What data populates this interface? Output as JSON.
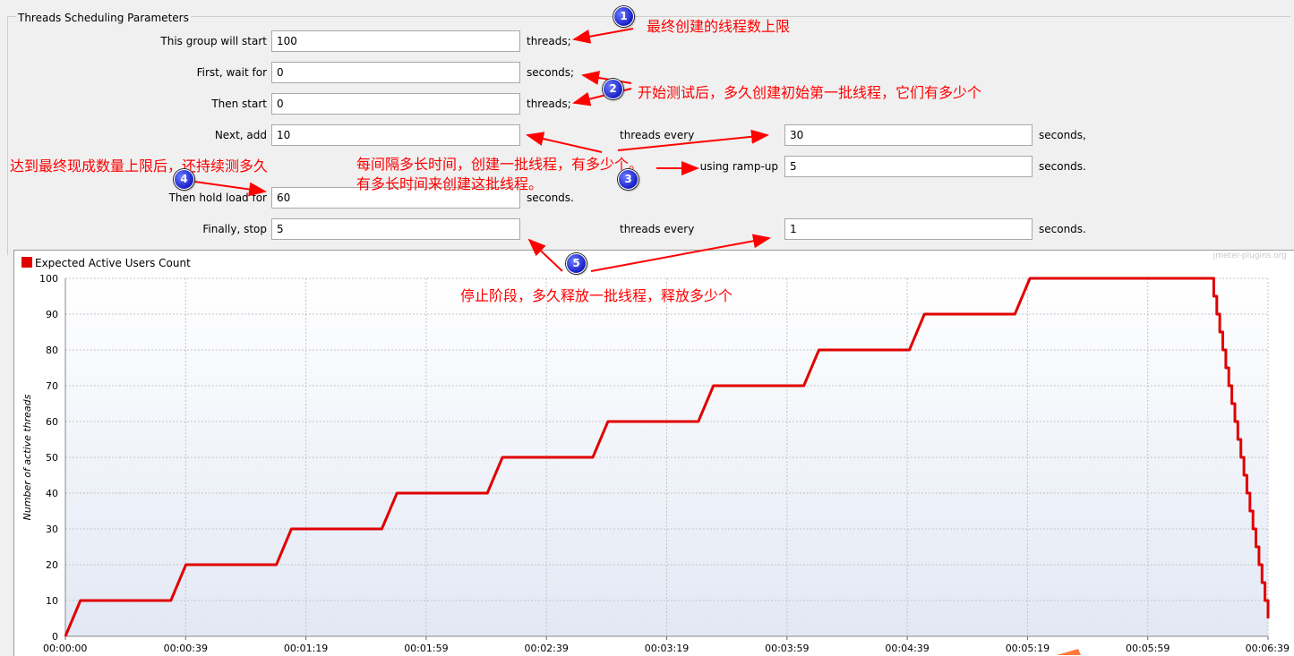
{
  "section_title": "Threads Scheduling Parameters",
  "form": {
    "start_label": "This group will start",
    "start_value": "100",
    "start_unit": "threads;",
    "wait_label": "First, wait for",
    "wait_value": "0",
    "wait_unit": "seconds;",
    "then_start_label": "Then start",
    "then_start_value": "0",
    "then_start_unit": "threads;",
    "add_label": "Next, add",
    "add_value": "10",
    "add_every_label": "threads every",
    "add_every_value": "30",
    "add_every_unit": "seconds,",
    "rampup_label": "using ramp-up",
    "rampup_value": "5",
    "rampup_unit": "seconds.",
    "hold_label": "Then hold load for",
    "hold_value": "60",
    "hold_unit": "seconds.",
    "stop_label": "Finally, stop",
    "stop_value": "5",
    "stop_every_label": "threads every",
    "stop_every_value": "1",
    "stop_every_unit": "seconds."
  },
  "annotations": {
    "a1": "最终创建的线程数上限",
    "a2": "开始测试后，多久创建初始第一批线程，它们有多少个",
    "a3_line1": "每间隔多长时间，创建一批线程，有多少个。",
    "a3_line2": "有多长时间来创建这批线程。",
    "a4": "达到最终现成数量上限后，还持续测多久",
    "a5": "停止阶段，多久释放一批线程，释放多少个",
    "badges": [
      "1",
      "2",
      "3",
      "4",
      "5"
    ]
  },
  "colors": {
    "series": "#e00000",
    "annotation": "#ff0000",
    "badge": "#1a1fc8"
  },
  "chart": {
    "legend": "Expected Active Users Count",
    "watermark": "jmeter-plugins.org",
    "ylabel": "Number of active threads"
  },
  "chart_data": {
    "type": "line",
    "title": "",
    "xlabel": "",
    "ylabel": "Number of active threads",
    "xlim": [
      0,
      399
    ],
    "ylim": [
      0,
      100
    ],
    "grid": true,
    "legend": "top-left",
    "x_ticks": [
      "00:00:00",
      "00:00:39",
      "00:01:19",
      "00:01:59",
      "00:02:39",
      "00:03:19",
      "00:03:59",
      "00:04:39",
      "00:05:19",
      "00:05:59",
      "00:06:39"
    ],
    "y_ticks": [
      0,
      10,
      20,
      30,
      40,
      50,
      60,
      70,
      80,
      90,
      100
    ],
    "series": [
      {
        "name": "Expected Active Users Count",
        "x": [
          0,
          5,
          35,
          40,
          70,
          75,
          105,
          110,
          140,
          145,
          175,
          180,
          210,
          215,
          245,
          250,
          280,
          285,
          315,
          320,
          380,
          381,
          381,
          382,
          382,
          383,
          383,
          384,
          384,
          385,
          385,
          386,
          386,
          387,
          387,
          388,
          388,
          389,
          389,
          390,
          390,
          391,
          391,
          392,
          392,
          393,
          393,
          394,
          394,
          395,
          395,
          396,
          396,
          397,
          397,
          398,
          398,
          399,
          399
        ],
        "y": [
          0,
          10,
          10,
          20,
          20,
          30,
          30,
          40,
          40,
          50,
          50,
          60,
          60,
          70,
          70,
          80,
          80,
          90,
          90,
          100,
          100,
          100,
          95,
          95,
          90,
          90,
          85,
          85,
          80,
          80,
          75,
          75,
          70,
          70,
          65,
          65,
          60,
          60,
          55,
          55,
          50,
          50,
          45,
          45,
          40,
          40,
          35,
          35,
          30,
          30,
          25,
          25,
          20,
          20,
          15,
          15,
          10,
          10,
          5
        ]
      }
    ]
  }
}
